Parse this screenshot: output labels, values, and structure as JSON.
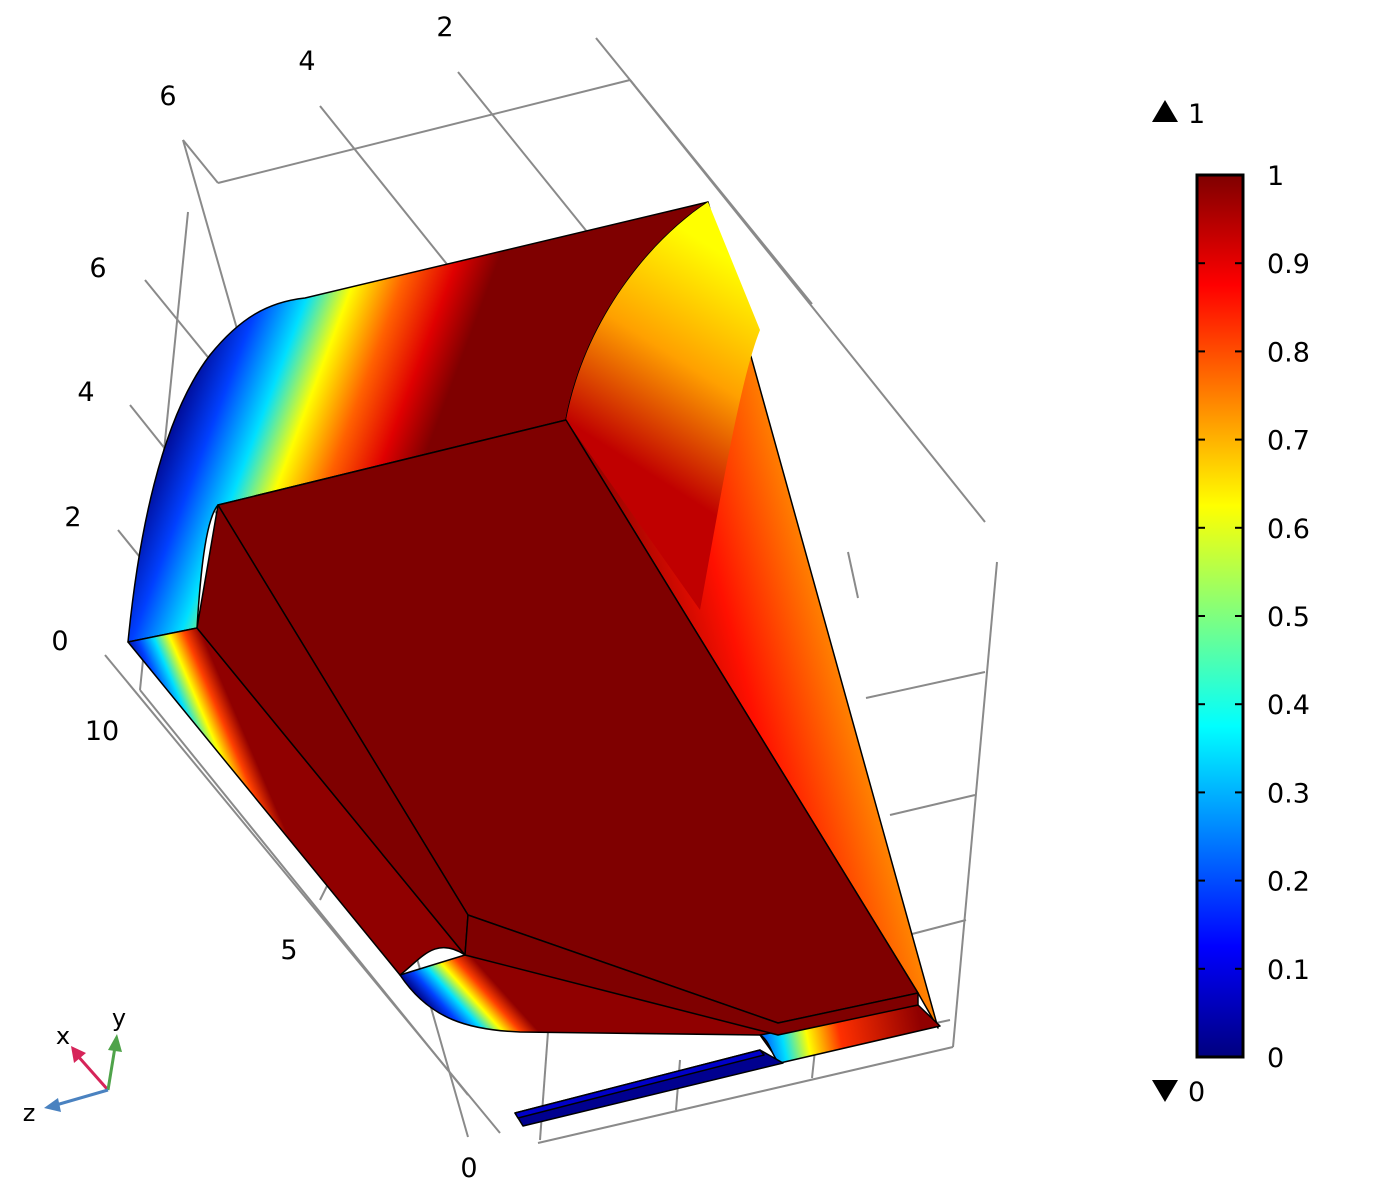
{
  "chart_data": {
    "type": "surface-3d",
    "title": "",
    "axes": {
      "a": {
        "tick_labels": [
          "2",
          "4",
          "6"
        ]
      },
      "b": {
        "tick_labels": [
          "6",
          "4",
          "2",
          "0"
        ]
      },
      "c": {
        "tick_labels": [
          "10",
          "5",
          "0"
        ]
      }
    },
    "colorbar": {
      "colormap": "jet",
      "range": [
        0,
        1
      ],
      "max_indicator": "1",
      "min_indicator": "0",
      "ticks": [
        "1",
        "0.9",
        "0.8",
        "0.7",
        "0.6",
        "0.5",
        "0.4",
        "0.3",
        "0.2",
        "0.1",
        "0"
      ],
      "stops": [
        "#00007f",
        "#0000ff",
        "#007fff",
        "#00ffff",
        "#7fff7f",
        "#ffff00",
        "#ff7f00",
        "#ff0000",
        "#7f0000"
      ]
    },
    "triad": {
      "labels": [
        "x",
        "y",
        "z"
      ],
      "colors": [
        "#d62459",
        "#4fa34a",
        "#4a82c0"
      ]
    }
  }
}
